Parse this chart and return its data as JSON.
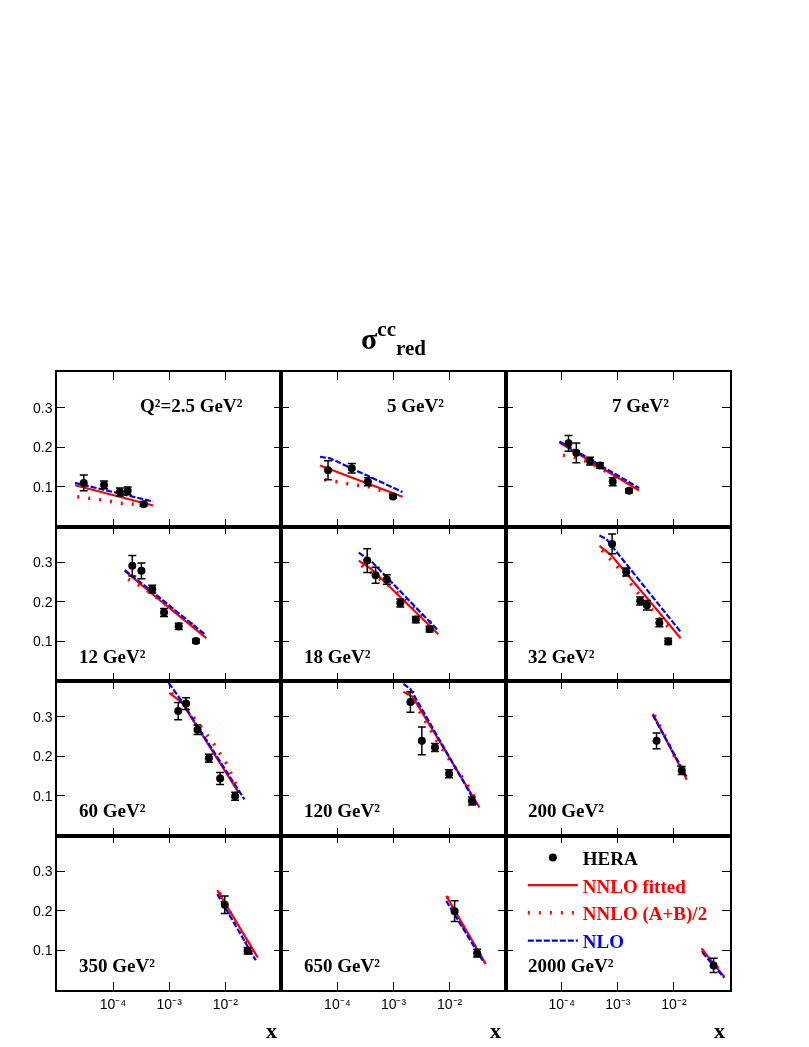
{
  "chart_data": [
    {
      "type": "line",
      "annotations": [
        "Q²=2.5 GeV²"
      ],
      "log": "x",
      "xlim": [
        1e-05,
        0.1
      ],
      "ylim": [
        0,
        0.39
      ],
      "xticks": [
        {
          "value": 0.0001,
          "label": null
        },
        {
          "value": 0.001,
          "label": null
        },
        {
          "value": 0.01,
          "label": null
        }
      ],
      "yticks": [
        0.1,
        0.2,
        0.3
      ],
      "tick_labels": "y",
      "series": [
        {
          "type": "scatter",
          "marker": "circle",
          "color": "#000000",
          "x": [
            3e-05,
            6.9e-05,
            0.000132,
            0.000182,
            0.00035
          ],
          "values": [
            0.11,
            0.105,
            0.087,
            0.09,
            0.056
          ],
          "errors": [
            0.02,
            0.01,
            0.01,
            0.01,
            0.005
          ]
        },
        {
          "line_style": "solid",
          "color": "#ff0000",
          "x": [
            2.1e-05,
            0.00052
          ],
          "values": [
            0.104,
            0.053
          ]
        },
        {
          "line_style": "dotted",
          "color": "#ff0000",
          "x": [
            2.3e-05,
            4.4e-05,
            7.9e-05,
            0.000148,
            0.00026,
            0.00047
          ],
          "values": [
            0.075,
            0.07,
            0.065,
            0.058,
            0.056,
            0.052
          ]
        },
        {
          "line_style": "dashed",
          "color": "#0000ff",
          "x": [
            2.1e-05,
            0.00052
          ],
          "values": [
            0.11,
            0.063
          ]
        }
      ]
    },
    {
      "type": "line",
      "title": "σ$^{cc}$$_{red}$",
      "annotations": [
        "5 GeV²"
      ],
      "log": "x",
      "xlim": [
        1e-05,
        0.1
      ],
      "ylim": [
        0,
        0.39
      ],
      "xticks": [
        {
          "value": 0.0001,
          "label": null
        },
        {
          "value": 0.001,
          "label": null
        },
        {
          "value": 0.01,
          "label": null
        }
      ],
      "yticks": [
        0.1,
        0.2,
        0.3
      ],
      "tick_labels": false,
      "series": [
        {
          "type": "scatter",
          "marker": "circle",
          "color": "#000000",
          "x": [
            6.8e-05,
            0.00018,
            0.00035,
            0.00098
          ],
          "values": [
            0.142,
            0.147,
            0.113,
            0.076
          ],
          "errors": [
            0.024,
            0.012,
            0.01,
            0.005
          ]
        },
        {
          "line_style": "solid",
          "color": "#ff0000",
          "x": [
            4.9e-05,
            0.00145
          ],
          "values": [
            0.154,
            0.075
          ]
        },
        {
          "line_style": "dotted",
          "color": "#ff0000",
          "x": [
            5.9e-05,
            0.000107,
            0.0002,
            0.00035,
            0.00062,
            0.00112
          ],
          "values": [
            0.118,
            0.112,
            0.105,
            0.101,
            0.09,
            0.079
          ]
        },
        {
          "line_style": "dashed",
          "color": "#0000ff",
          "x": [
            4.9e-05,
            7.4e-05,
            0.00145
          ],
          "values": [
            0.176,
            0.172,
            0.087
          ]
        }
      ]
    },
    {
      "type": "line",
      "annotations": [
        "7 GeV²"
      ],
      "log": "x",
      "xlim": [
        1e-05,
        0.1
      ],
      "ylim": [
        0,
        0.39
      ],
      "xticks": [
        {
          "value": 0.0001,
          "label": null
        },
        {
          "value": 0.001,
          "label": null
        },
        {
          "value": 0.01,
          "label": null
        }
      ],
      "yticks": [
        0.1,
        0.2,
        0.3
      ],
      "tick_labels": false,
      "series": [
        {
          "type": "scatter",
          "marker": "circle",
          "color": "#000000",
          "x": [
            0.000132,
            0.000182,
            0.00032,
            0.00048,
            0.00081,
            0.00158
          ],
          "values": [
            0.21,
            0.186,
            0.165,
            0.154,
            0.113,
            0.09
          ],
          "errors": [
            0.02,
            0.025,
            0.01,
            0.007,
            0.01,
            0.005
          ]
        },
        {
          "line_style": "solid",
          "color": "#ff0000",
          "x": [
            9.1e-05,
            0.0024
          ],
          "values": [
            0.212,
            0.091
          ]
        },
        {
          "line_style": "dotted",
          "color": "#ff0000",
          "x": [
            0.000105,
            0.00019,
            0.00035,
            0.00058,
            0.00102,
            0.00186
          ],
          "values": [
            0.18,
            0.173,
            0.158,
            0.141,
            0.124,
            0.105
          ]
        },
        {
          "line_style": "dashed",
          "color": "#0000ff",
          "x": [
            9.1e-05,
            0.0024
          ],
          "values": [
            0.215,
            0.097
          ]
        }
      ]
    },
    {
      "type": "line",
      "annotations": [
        "12 GeV²"
      ],
      "log": "x",
      "xlim": [
        1e-05,
        0.1
      ],
      "ylim": [
        0,
        0.39
      ],
      "xticks": [
        {
          "value": 0.0001,
          "label": null
        },
        {
          "value": 0.001,
          "label": null
        },
        {
          "value": 0.01,
          "label": null
        }
      ],
      "yticks": [
        0.1,
        0.2,
        0.3
      ],
      "tick_labels": "y",
      "series": [
        {
          "type": "scatter",
          "marker": "circle",
          "color": "#000000",
          "x": [
            0.00022,
            0.00032,
            0.0005,
            0.00081,
            0.00148,
            0.003
          ],
          "values": [
            0.291,
            0.278,
            0.232,
            0.173,
            0.138,
            0.101
          ],
          "errors": [
            0.026,
            0.02,
            0.01,
            0.01,
            0.008,
            0.005
          ]
        },
        {
          "line_style": "solid",
          "color": "#ff0000",
          "x": [
            0.000162,
            0.00058,
            0.0046
          ],
          "values": [
            0.278,
            0.212,
            0.108
          ]
        },
        {
          "line_style": "dotted",
          "color": "#ff0000",
          "x": [
            0.000186,
            0.00032,
            0.00058,
            0.00105,
            0.0019,
            0.0034
          ],
          "values": [
            0.257,
            0.239,
            0.212,
            0.184,
            0.156,
            0.131
          ]
        },
        {
          "line_style": "dashed",
          "color": "#0000ff",
          "x": [
            0.000162,
            0.00058,
            0.0043
          ],
          "values": [
            0.28,
            0.218,
            0.118
          ]
        }
      ]
    },
    {
      "type": "line",
      "annotations": [
        "18 GeV²"
      ],
      "log": "x",
      "xlim": [
        1e-05,
        0.1
      ],
      "ylim": [
        0,
        0.39
      ],
      "xticks": [
        {
          "value": 0.0001,
          "label": null
        },
        {
          "value": 0.001,
          "label": null
        },
        {
          "value": 0.01,
          "label": null
        }
      ],
      "yticks": [
        0.1,
        0.2,
        0.3
      ],
      "tick_labels": false,
      "series": [
        {
          "type": "scatter",
          "marker": "circle",
          "color": "#000000",
          "x": [
            0.00034,
            0.00048,
            0.00076,
            0.00132,
            0.0025,
            0.0044
          ],
          "values": [
            0.304,
            0.267,
            0.256,
            0.197,
            0.155,
            0.131
          ],
          "errors": [
            0.03,
            0.02,
            0.012,
            0.01,
            0.008,
            0.007
          ]
        },
        {
          "line_style": "solid",
          "color": "#ff0000",
          "x": [
            0.00024,
            0.00041,
            0.0063
          ],
          "values": [
            0.304,
            0.282,
            0.118
          ]
        },
        {
          "line_style": "dotted",
          "color": "#ff0000",
          "x": [
            0.00027,
            0.00048,
            0.00087,
            0.00158,
            0.0028,
            0.0051
          ],
          "values": [
            0.292,
            0.265,
            0.239,
            0.206,
            0.173,
            0.143
          ]
        },
        {
          "line_style": "dashed",
          "color": "#0000ff",
          "x": [
            0.00024,
            0.00041,
            0.0063
          ],
          "values": [
            0.324,
            0.301,
            0.127
          ]
        }
      ]
    },
    {
      "type": "line",
      "annotations": [
        "32 GeV²"
      ],
      "log": "x",
      "xlim": [
        1e-05,
        0.1
      ],
      "ylim": [
        0,
        0.39
      ],
      "xticks": [
        {
          "value": 0.0001,
          "label": null
        },
        {
          "value": 0.001,
          "label": null
        },
        {
          "value": 0.01,
          "label": null
        }
      ],
      "yticks": [
        0.1,
        0.2,
        0.3
      ],
      "tick_labels": false,
      "series": [
        {
          "type": "scatter",
          "marker": "circle",
          "color": "#000000",
          "x": [
            0.00079,
            0.00141,
            0.0025,
            0.0033,
            0.0055,
            0.0079
          ],
          "values": [
            0.346,
            0.275,
            0.202,
            0.191,
            0.147,
            0.1
          ],
          "errors": [
            0.025,
            0.01,
            0.01,
            0.012,
            0.01,
            0.008
          ]
        },
        {
          "line_style": "solid",
          "color": "#ff0000",
          "x": [
            0.00047,
            0.00076,
            0.0132
          ],
          "values": [
            0.341,
            0.318,
            0.108
          ]
        },
        {
          "line_style": "dotted",
          "color": "#ff0000",
          "x": [
            0.00052,
            0.00095,
            0.0017,
            0.0031,
            0.0056,
            0.01
          ],
          "values": [
            0.33,
            0.291,
            0.245,
            0.199,
            0.156,
            0.124
          ]
        },
        {
          "line_style": "dashed",
          "color": "#0000ff",
          "x": [
            0.00047,
            0.00062,
            0.00105,
            0.0132
          ],
          "values": [
            0.367,
            0.359,
            0.318,
            0.124
          ]
        }
      ]
    },
    {
      "type": "line",
      "annotations": [
        "60 GeV²"
      ],
      "log": "x",
      "xlim": [
        1e-05,
        0.1
      ],
      "ylim": [
        0,
        0.39
      ],
      "xticks": [
        {
          "value": 0.0001,
          "label": null
        },
        {
          "value": 0.001,
          "label": null
        },
        {
          "value": 0.01,
          "label": null
        }
      ],
      "yticks": [
        0.1,
        0.2,
        0.3
      ],
      "tick_labels": "y",
      "series": [
        {
          "type": "scatter",
          "marker": "circle",
          "color": "#000000",
          "x": [
            0.00145,
            0.002,
            0.0032,
            0.0051,
            0.0081,
            0.015
          ],
          "values": [
            0.314,
            0.333,
            0.267,
            0.195,
            0.144,
            0.099
          ],
          "errors": [
            0.022,
            0.015,
            0.012,
            0.01,
            0.015,
            0.01
          ]
        },
        {
          "line_style": "solid",
          "color": "#ff0000",
          "x": [
            0.001,
            0.00166,
            0.017
          ],
          "values": [
            0.36,
            0.337,
            0.11
          ]
        },
        {
          "line_style": "dotted",
          "color": "#ff0000",
          "x": [
            0.0011,
            0.00195,
            0.0035,
            0.0062,
            0.0107,
            0.0178
          ],
          "values": [
            0.36,
            0.324,
            0.278,
            0.232,
            0.18,
            0.11
          ]
        },
        {
          "line_style": "dashed",
          "color": "#0000ff",
          "x": [
            0.00098,
            0.00148,
            0.022
          ],
          "values": [
            0.385,
            0.35,
            0.091
          ]
        }
      ]
    },
    {
      "type": "line",
      "annotations": [
        "120 GeV²"
      ],
      "log": "x",
      "xlim": [
        1e-05,
        0.1
      ],
      "ylim": [
        0,
        0.39
      ],
      "xticks": [
        {
          "value": 0.0001,
          "label": null
        },
        {
          "value": 0.001,
          "label": null
        },
        {
          "value": 0.01,
          "label": null
        }
      ],
      "yticks": [
        0.1,
        0.2,
        0.3
      ],
      "tick_labels": false,
      "series": [
        {
          "type": "scatter",
          "marker": "circle",
          "color": "#000000",
          "x": [
            0.002,
            0.0032,
            0.0055,
            0.0098,
            0.025
          ],
          "values": [
            0.337,
            0.239,
            0.222,
            0.156,
            0.087
          ],
          "errors": [
            0.026,
            0.035,
            0.01,
            0.01,
            0.01
          ]
        },
        {
          "line_style": "solid",
          "color": "#ff0000",
          "x": [
            0.0015,
            0.0022,
            0.034
          ],
          "values": [
            0.363,
            0.35,
            0.071
          ]
        },
        {
          "line_style": "dotted",
          "color": "#ff0000",
          "x": [
            0.00178,
            0.0032,
            0.0058,
            0.0105,
            0.0186,
            0.032
          ],
          "values": [
            0.36,
            0.304,
            0.241,
            0.186,
            0.139,
            0.082
          ]
        },
        {
          "line_style": "dashed",
          "color": "#0000ff",
          "x": [
            0.0015,
            0.002,
            0.031
          ],
          "values": [
            0.383,
            0.37,
            0.075
          ]
        }
      ]
    },
    {
      "type": "line",
      "annotations": [
        "200 GeV²"
      ],
      "log": "x",
      "xlim": [
        1e-05,
        0.1
      ],
      "ylim": [
        0,
        0.39
      ],
      "xticks": [
        {
          "value": 0.0001,
          "label": null
        },
        {
          "value": 0.001,
          "label": null
        },
        {
          "value": 0.01,
          "label": null
        }
      ],
      "yticks": [
        0.1,
        0.2,
        0.3
      ],
      "tick_labels": false,
      "series": [
        {
          "type": "scatter",
          "marker": "circle",
          "color": "#000000",
          "x": [
            0.0049,
            0.0138
          ],
          "values": [
            0.239,
            0.164
          ],
          "errors": [
            0.02,
            0.01
          ]
        },
        {
          "line_style": "solid",
          "color": "#ff0000",
          "x": [
            0.0042,
            0.017
          ],
          "values": [
            0.307,
            0.141
          ]
        },
        {
          "line_style": "dotted",
          "color": "#ff0000",
          "x": [
            0.0045,
            0.0076,
            0.0132
          ],
          "values": [
            0.304,
            0.239,
            0.167
          ]
        },
        {
          "line_style": "dashed",
          "color": "#0000ff",
          "x": [
            0.0042,
            0.017
          ],
          "values": [
            0.304,
            0.147
          ]
        }
      ]
    },
    {
      "type": "line",
      "xlabel": "x",
      "annotations": [
        "350 GeV²"
      ],
      "log": "x",
      "xlim": [
        1e-05,
        0.1
      ],
      "ylim": [
        0,
        0.39
      ],
      "xticks": [
        {
          "value": 0.0001,
          "label": "10⁻⁴"
        },
        {
          "value": 0.001,
          "label": "10⁻³"
        },
        {
          "value": 0.01,
          "label": "10⁻²"
        }
      ],
      "yticks": [
        0.1,
        0.2,
        0.3
      ],
      "series": [
        {
          "type": "scatter",
          "marker": "circle",
          "color": "#000000",
          "x": [
            0.0098,
            0.025
          ],
          "values": [
            0.215,
            0.099
          ],
          "errors": [
            0.022,
            0.008
          ]
        },
        {
          "line_style": "solid",
          "color": "#ff0000",
          "x": [
            0.0072,
            0.038
          ],
          "values": [
            0.252,
            0.082
          ]
        },
        {
          "line_style": "dotted",
          "color": "#ff0000",
          "x": [
            0.0079,
            0.0138,
            0.024,
            0.036
          ],
          "values": [
            0.246,
            0.18,
            0.118,
            0.084
          ]
        },
        {
          "line_style": "dashed",
          "color": "#0000ff",
          "x": [
            0.0072,
            0.035
          ],
          "values": [
            0.242,
            0.075
          ]
        }
      ]
    },
    {
      "type": "line",
      "xlabel": "x",
      "annotations": [
        "650 GeV²"
      ],
      "log": "x",
      "xlim": [
        1e-05,
        0.1
      ],
      "ylim": [
        0,
        0.39
      ],
      "xticks": [
        {
          "value": 0.0001,
          "label": "10⁻⁴"
        },
        {
          "value": 0.001,
          "label": "10⁻³"
        },
        {
          "value": 0.01,
          "label": "10⁻²"
        }
      ],
      "yticks": [
        0.1,
        0.2,
        0.3
      ],
      "tick_labels": "x",
      "series": [
        {
          "type": "scatter",
          "marker": "circle",
          "color": "#000000",
          "x": [
            0.0123,
            0.031
          ],
          "values": [
            0.199,
            0.093
          ],
          "errors": [
            0.026,
            0.01
          ]
        },
        {
          "line_style": "solid",
          "color": "#ff0000",
          "x": [
            0.0087,
            0.044
          ],
          "values": [
            0.238,
            0.066
          ]
        },
        {
          "line_style": "dotted",
          "color": "#ff0000",
          "x": [
            0.0091,
            0.0166,
            0.029,
            0.044
          ],
          "values": [
            0.235,
            0.166,
            0.108,
            0.066
          ]
        },
        {
          "line_style": "dashed",
          "color": "#0000ff",
          "x": [
            0.0087,
            0.041
          ],
          "values": [
            0.225,
            0.069
          ]
        }
      ]
    },
    {
      "type": "line",
      "xlabel": "x",
      "annotations": [
        "2000 GeV²"
      ],
      "legend": "top",
      "log": "x",
      "xlim": [
        1e-05,
        0.1
      ],
      "ylim": [
        0,
        0.39
      ],
      "xticks": [
        {
          "value": 0.0001,
          "label": "10⁻⁴"
        },
        {
          "value": 0.001,
          "label": "10⁻³"
        },
        {
          "value": 0.01,
          "label": "10⁻²"
        }
      ],
      "yticks": [
        0.1,
        0.2,
        0.3
      ],
      "tick_labels": "x",
      "series": [
        {
          "type": "scatter",
          "name": "HERA",
          "marker": "circle",
          "color": "#000000",
          "x": [
            0.051
          ],
          "values": [
            0.062
          ],
          "errors": [
            0.018
          ]
        },
        {
          "name": "NNLO fitted",
          "line_style": "solid",
          "color": "#ff0000",
          "x": [
            0.031,
            0.079
          ],
          "values": [
            0.105,
            0.033
          ]
        },
        {
          "name": "NNLO (A+B)/2",
          "line_style": "dotted",
          "color": "#ff0000",
          "x": [
            0.032,
            0.052,
            0.079
          ],
          "values": [
            0.1,
            0.066,
            0.036
          ]
        },
        {
          "name": "NLO",
          "line_style": "dashed",
          "color": "#0000ff",
          "x": [
            0.032,
            0.079
          ],
          "values": [
            0.095,
            0.031
          ]
        }
      ]
    }
  ]
}
